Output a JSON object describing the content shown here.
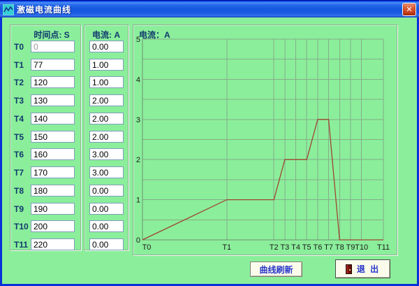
{
  "window": {
    "title": "激磁电流曲线",
    "close_glyph": "✕"
  },
  "table": {
    "time_header": "时间点: S",
    "current_header": "电流: A",
    "rows": [
      {
        "label": "T0",
        "time": "0",
        "current": "0.00",
        "time_disabled": true
      },
      {
        "label": "T1",
        "time": "77",
        "current": "1.00",
        "time_disabled": false
      },
      {
        "label": "T2",
        "time": "120",
        "current": "1.00",
        "time_disabled": false
      },
      {
        "label": "T3",
        "time": "130",
        "current": "2.00",
        "time_disabled": false
      },
      {
        "label": "T4",
        "time": "140",
        "current": "2.00",
        "time_disabled": false
      },
      {
        "label": "T5",
        "time": "150",
        "current": "2.00",
        "time_disabled": false
      },
      {
        "label": "T6",
        "time": "160",
        "current": "3.00",
        "time_disabled": false
      },
      {
        "label": "T7",
        "time": "170",
        "current": "3.00",
        "time_disabled": false
      },
      {
        "label": "T8",
        "time": "180",
        "current": "0.00",
        "time_disabled": false
      },
      {
        "label": "T9",
        "time": "190",
        "current": "0.00",
        "time_disabled": false
      },
      {
        "label": "T10",
        "time": "200",
        "current": "0.00",
        "time_disabled": false
      },
      {
        "label": "T11",
        "time": "220",
        "current": "0.00",
        "time_disabled": false
      }
    ]
  },
  "chart_data": {
    "type": "line",
    "title": "电流：A",
    "x": [
      0,
      77,
      120,
      130,
      140,
      150,
      160,
      170,
      180,
      190,
      200,
      220
    ],
    "y": [
      0,
      1,
      1,
      2,
      2,
      2,
      3,
      3,
      0,
      0,
      0,
      0
    ],
    "x_tick_labels": [
      "T0",
      "T1",
      "T2",
      "T3",
      "T4",
      "T5",
      "T6",
      "T7",
      "T8",
      "T9",
      "T10",
      "T11"
    ],
    "y_ticks": [
      0,
      1,
      2,
      3,
      4,
      5
    ],
    "xlim": [
      0,
      220
    ],
    "ylim": [
      0,
      5
    ],
    "grid": true,
    "grid_step_y": 0.5,
    "line_color": "#9E4433",
    "grid_color": "#86AC88",
    "axis_color": "#6E906F",
    "tick_label_color": "#1c1c1c"
  },
  "buttons": {
    "refresh": "曲线刷新",
    "exit": "退  出"
  },
  "colors": {
    "background_green": "#8BEE9B",
    "titlebar_blue": "#1557DD",
    "window_border_blue": "#0831D9",
    "label_navy": "#113A6E",
    "button_text_blue": "#2836C8"
  }
}
